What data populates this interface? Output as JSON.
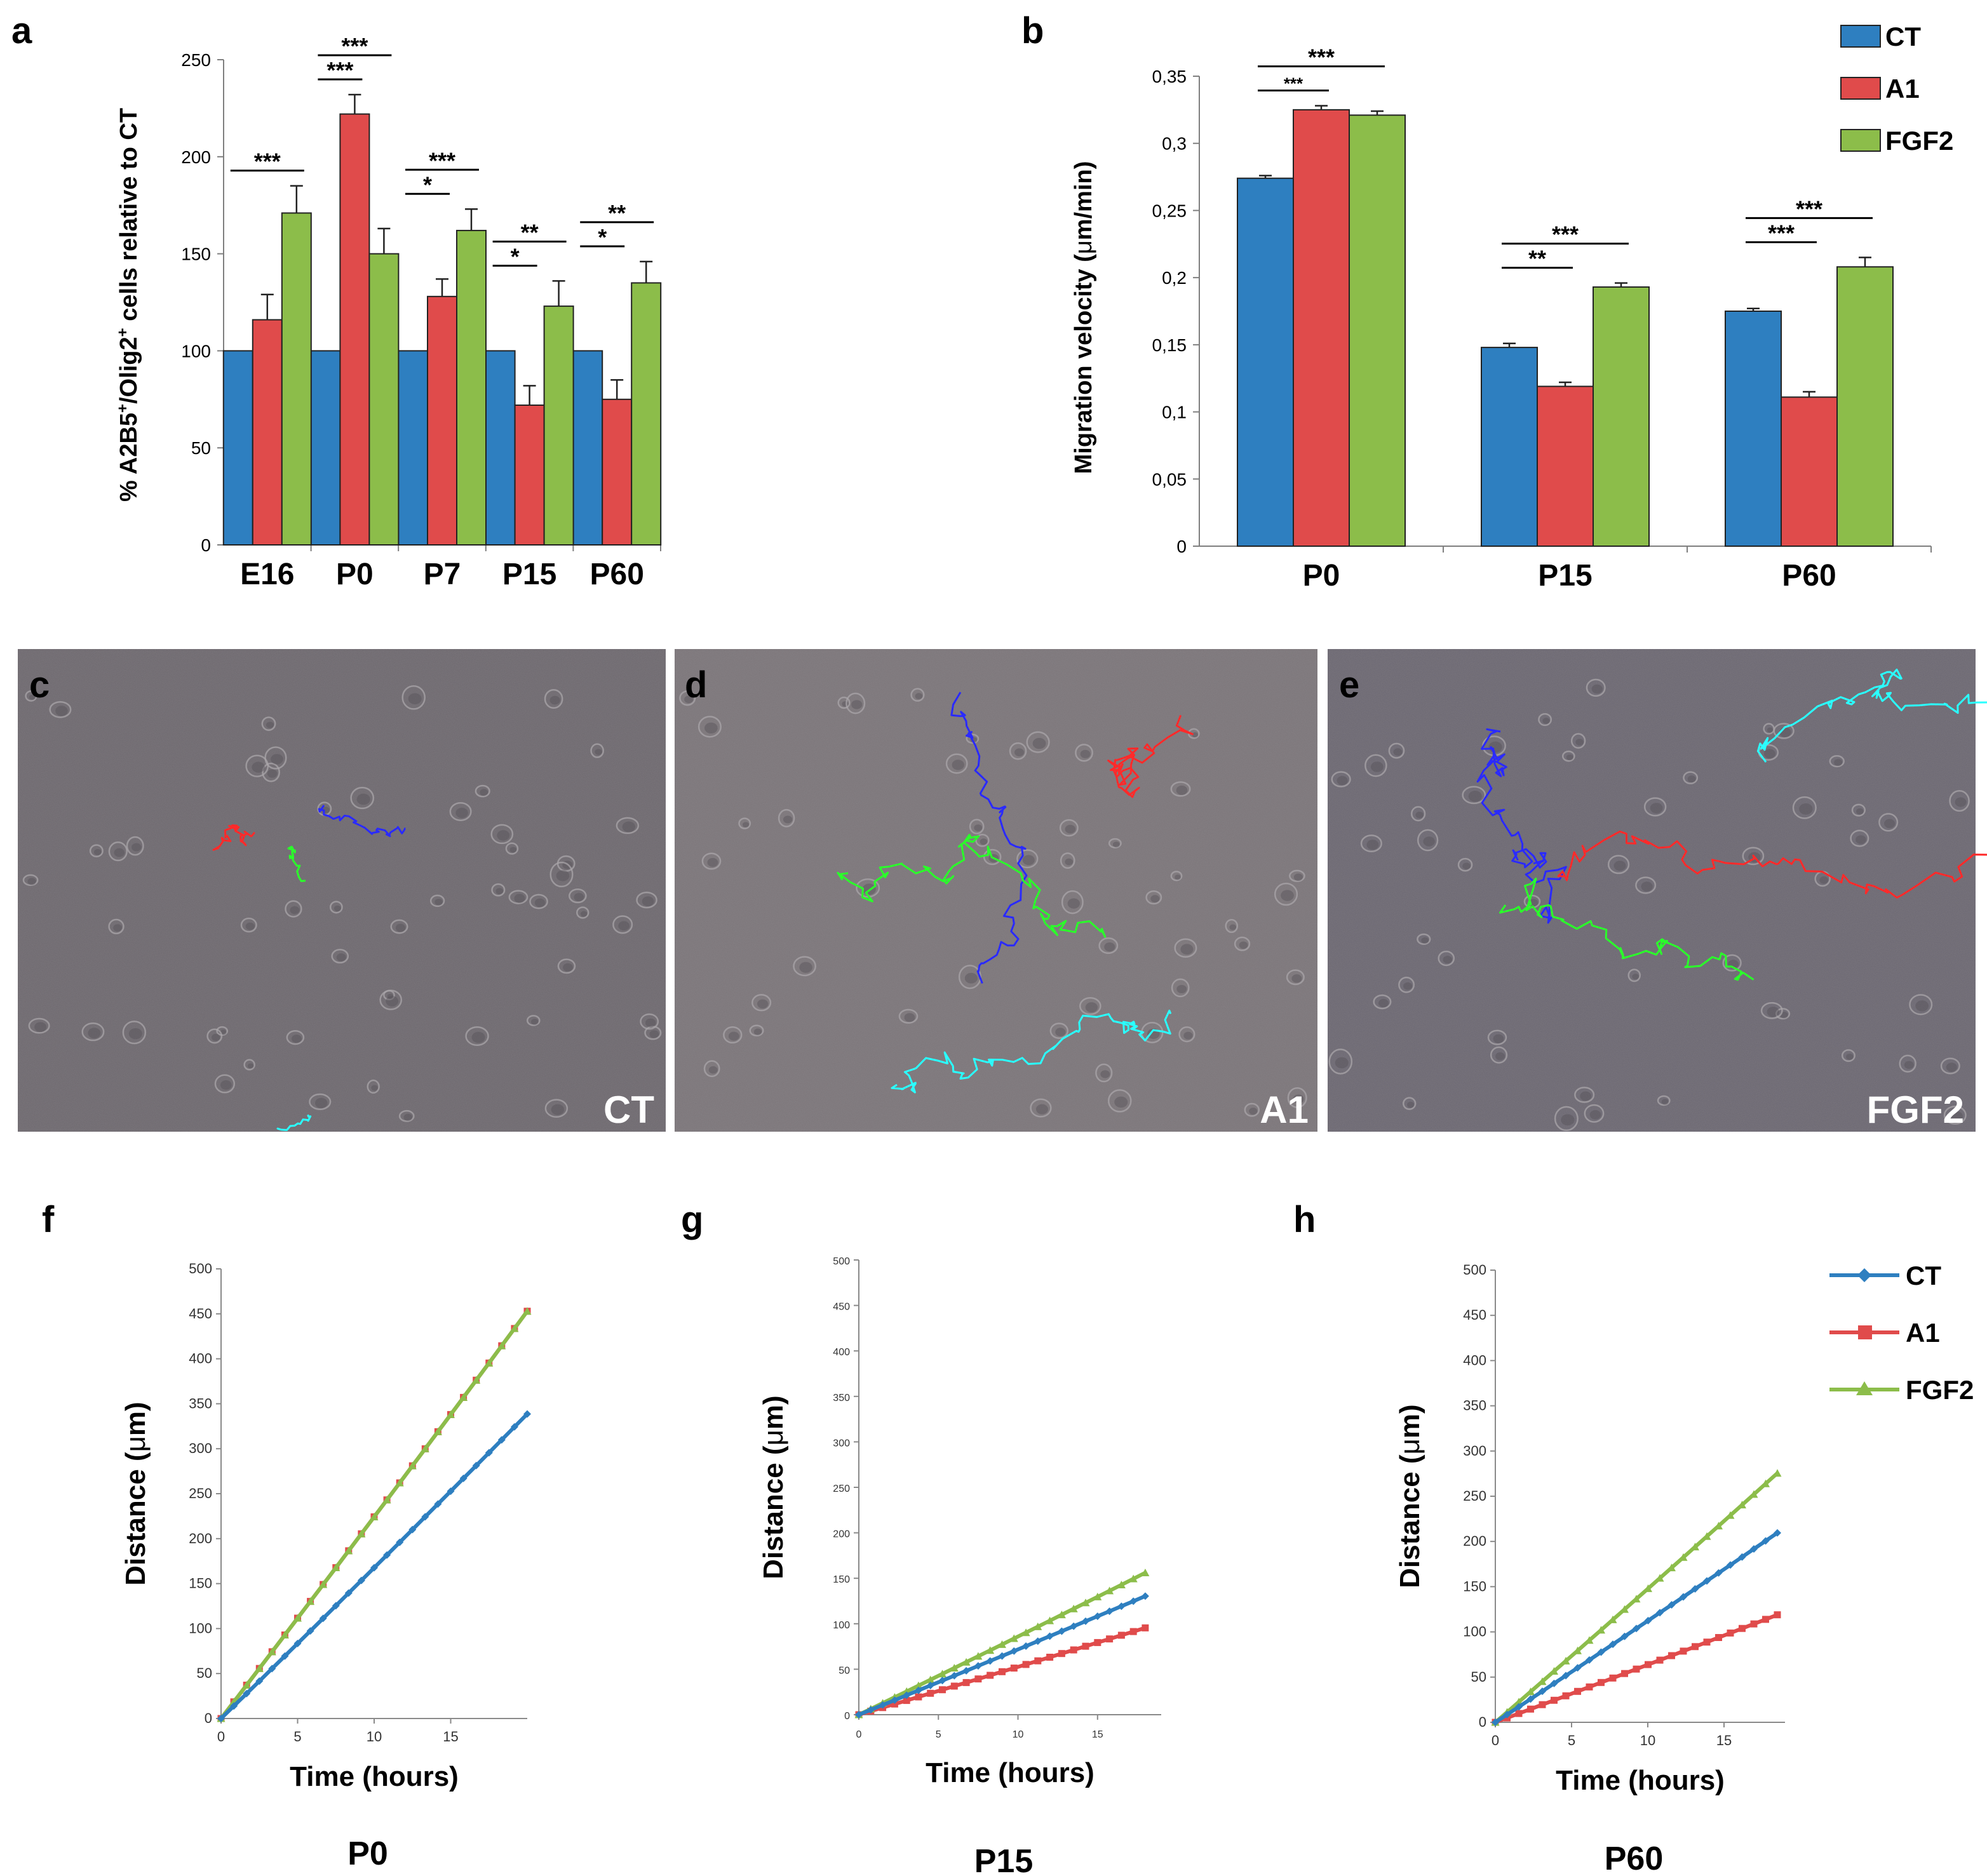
{
  "colors": {
    "CT": "#2e7fc0",
    "A1": "#e04b4b",
    "FGF2": "#8cbd4a",
    "micro_bg": "#6c676d"
  },
  "panel_letters": [
    "a",
    "b",
    "c",
    "d",
    "e",
    "f",
    "g",
    "h"
  ],
  "chart_data": [
    {
      "id": "a",
      "type": "bar",
      "ylabel_pre": "% A2B5",
      "ylabel_mid": "/Olig2",
      "ylabel_post": " cells relative to CT",
      "ylabel_sup": "+",
      "categories": [
        "E16",
        "P0",
        "P7",
        "P15",
        "P60"
      ],
      "ylim": [
        0,
        250
      ],
      "yticks": [
        "0",
        "50",
        "100",
        "150",
        "200",
        "250"
      ],
      "series": [
        {
          "name": "CT",
          "values": [
            100,
            100,
            100,
            100,
            100
          ],
          "errors": [
            0,
            0,
            0,
            0,
            0
          ]
        },
        {
          "name": "A1",
          "values": [
            116,
            222,
            128,
            72,
            75
          ],
          "errors": [
            13,
            10,
            9,
            10,
            10
          ]
        },
        {
          "name": "FGF2",
          "values": [
            171,
            150,
            162,
            123,
            135
          ],
          "errors": [
            14,
            13,
            11,
            13,
            11
          ]
        }
      ],
      "significance": [
        {
          "cat": 0,
          "from": 0,
          "to": 2,
          "label": "***",
          "level": 0
        },
        {
          "cat": 1,
          "from": 0,
          "to": 1,
          "label": "***",
          "level": 0
        },
        {
          "cat": 1,
          "from": 0,
          "to": 2,
          "label": "***",
          "level": 1
        },
        {
          "cat": 2,
          "from": 0,
          "to": 1,
          "label": "*",
          "level": 0
        },
        {
          "cat": 2,
          "from": 0,
          "to": 2,
          "label": "***",
          "level": 1
        },
        {
          "cat": 3,
          "from": 0,
          "to": 1,
          "label": "*",
          "level": 0
        },
        {
          "cat": 3,
          "from": 0,
          "to": 2,
          "label": "**",
          "level": 1
        },
        {
          "cat": 4,
          "from": 0,
          "to": 1,
          "label": "*",
          "level": 0
        },
        {
          "cat": 4,
          "from": 0,
          "to": 2,
          "label": "**",
          "level": 1
        }
      ]
    },
    {
      "id": "b",
      "type": "bar",
      "ylabel_pre": "Migration velocity (",
      "ylabel_mu": "μ",
      "ylabel_post": "m/min)",
      "categories": [
        "P0",
        "P15",
        "P60"
      ],
      "ylim": [
        0,
        0.35
      ],
      "yticks": [
        "0",
        "0,05",
        "0,1",
        "0,15",
        "0,2",
        "0,25",
        "0,3",
        "0,35"
      ],
      "legend": [
        "CT",
        "A1",
        "FGF2"
      ],
      "series": [
        {
          "name": "CT",
          "values": [
            0.274,
            0.148,
            0.175
          ],
          "errors": [
            0.002,
            0.003,
            0.002
          ]
        },
        {
          "name": "A1",
          "values": [
            0.325,
            0.119,
            0.111
          ],
          "errors": [
            0.003,
            0.003,
            0.004
          ]
        },
        {
          "name": "FGF2",
          "values": [
            0.321,
            0.193,
            0.208
          ],
          "errors": [
            0.003,
            0.003,
            0.007
          ]
        }
      ],
      "significance": [
        {
          "cat": 0,
          "from": 0,
          "to": 1,
          "label": "***",
          "level": 0,
          "small": true
        },
        {
          "cat": 0,
          "from": 0,
          "to": 2,
          "label": "***",
          "level": 1
        },
        {
          "cat": 1,
          "from": 0,
          "to": 1,
          "label": "**",
          "level": 0
        },
        {
          "cat": 1,
          "from": 0,
          "to": 2,
          "label": "***",
          "level": 1
        },
        {
          "cat": 2,
          "from": 0,
          "to": 1,
          "label": "***",
          "level": 0
        },
        {
          "cat": 2,
          "from": 0,
          "to": 2,
          "label": "***",
          "level": 1
        }
      ]
    },
    {
      "id": "f",
      "type": "line",
      "title": "P0",
      "xlabel": "Time (hours)",
      "ylabel_pre": "Distance (",
      "ylabel_mu": "μ",
      "ylabel_post": "m)",
      "xlim": [
        0,
        20
      ],
      "xticks": [
        "0",
        "5",
        "10",
        "15"
      ],
      "ylim": [
        0,
        500
      ],
      "yticks": [
        "0",
        "50",
        "100",
        "150",
        "200",
        "250",
        "300",
        "350",
        "400",
        "450",
        "500"
      ],
      "series": [
        {
          "name": "CT",
          "slope": 16.6,
          "max_t": 20
        },
        {
          "name": "A1",
          "slope": 22.2,
          "max_t": 20
        },
        {
          "name": "FGF2",
          "slope": 22.2,
          "max_t": 20
        }
      ]
    },
    {
      "id": "g",
      "type": "line",
      "title": "P15",
      "xlabel": "Time (hours)",
      "ylabel_pre": "Distance (",
      "ylabel_mu": "μ",
      "ylabel_post": "m)",
      "xlim": [
        0,
        19
      ],
      "xticks": [
        "0",
        "5",
        "10",
        "15"
      ],
      "ylim": [
        0,
        500
      ],
      "yticks": [
        "0",
        "50",
        "100",
        "150",
        "200",
        "250",
        "300",
        "350",
        "400",
        "450",
        "500"
      ],
      "series": [
        {
          "name": "CT",
          "slope": 7.1,
          "max_t": 18
        },
        {
          "name": "A1",
          "slope": 5.2,
          "max_t": 18
        },
        {
          "name": "FGF2",
          "slope": 8.5,
          "max_t": 18
        }
      ]
    },
    {
      "id": "h",
      "type": "line",
      "title": "P60",
      "xlabel": "Time (hours)",
      "ylabel_pre": "Distance (",
      "ylabel_mu": "μ",
      "ylabel_post": "m)",
      "xlim": [
        0,
        19
      ],
      "xticks": [
        "0",
        "5",
        "10",
        "15"
      ],
      "ylim": [
        0,
        500
      ],
      "yticks": [
        "0",
        "50",
        "100",
        "150",
        "200",
        "250",
        "300",
        "350",
        "400",
        "450",
        "500"
      ],
      "legend": [
        "CT",
        "A1",
        "FGF2"
      ],
      "series": [
        {
          "name": "CT",
          "slope": 11.1,
          "max_t": 18.5
        },
        {
          "name": "A1",
          "slope": 6.3,
          "max_t": 18.5
        },
        {
          "name": "FGF2",
          "slope": 14.6,
          "max_t": 18.5
        }
      ]
    }
  ],
  "micrographs": [
    {
      "id": "c",
      "label": "CT"
    },
    {
      "id": "d",
      "label": "A1"
    },
    {
      "id": "e",
      "label": "FGF2"
    }
  ]
}
